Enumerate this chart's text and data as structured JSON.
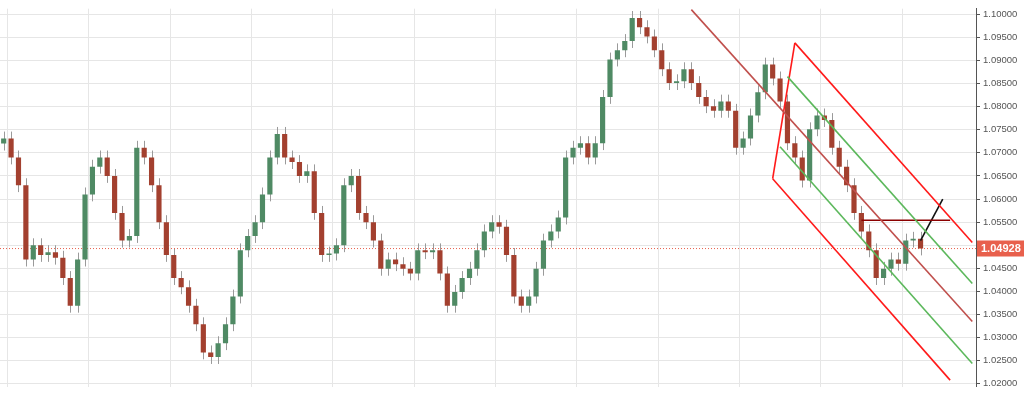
{
  "chart_data": {
    "type": "candlestick",
    "categories": [
      null,
      null,
      null,
      null,
      null,
      null,
      null,
      null,
      null,
      null,
      null,
      null,
      null,
      null,
      null,
      null,
      null,
      null,
      null,
      null,
      null,
      null,
      null,
      null,
      null,
      null,
      null,
      null,
      null,
      null,
      null,
      null,
      null,
      null,
      null,
      null,
      null,
      null,
      null,
      null,
      null,
      null,
      null,
      null,
      null,
      null,
      null,
      null,
      null,
      null,
      null,
      null,
      null,
      null,
      null,
      null,
      null,
      null,
      null,
      null,
      null,
      null,
      null,
      null,
      null,
      null,
      null,
      null,
      null,
      null,
      null,
      null,
      null,
      null,
      null,
      null,
      null,
      null,
      null,
      null,
      null,
      null,
      null,
      null,
      null,
      null,
      null,
      null,
      null,
      null,
      null,
      null,
      null,
      null,
      null,
      null,
      null,
      null,
      null,
      null,
      null,
      null,
      null,
      null,
      null,
      null,
      null,
      null,
      null,
      null,
      null,
      null,
      null,
      null,
      null,
      null,
      null,
      null,
      null,
      null,
      null,
      null,
      null,
      null,
      null,
      null,
      null,
      null,
      null,
      null,
      null,
      null
    ],
    "ohlc": [
      [
        1.072,
        1.0746,
        1.0705,
        1.0731
      ],
      [
        1.0731,
        1.0746,
        1.0675,
        1.069
      ],
      [
        1.069,
        1.0705,
        1.0615,
        1.063
      ],
      [
        1.063,
        1.0645,
        1.0454,
        1.0469
      ],
      [
        1.0469,
        1.0515,
        1.0454,
        1.05
      ],
      [
        1.05,
        1.0515,
        1.0464,
        1.0479
      ],
      [
        1.0479,
        1.05,
        1.0464,
        1.0485
      ],
      [
        1.0485,
        1.05,
        1.0458,
        1.0473
      ],
      [
        1.0473,
        1.0488,
        1.0414,
        1.0429
      ],
      [
        1.0429,
        1.0444,
        1.0354,
        1.0369
      ],
      [
        1.0369,
        1.0484,
        1.0354,
        1.0469
      ],
      [
        1.0469,
        1.0625,
        1.0454,
        1.061
      ],
      [
        1.061,
        1.0685,
        1.0595,
        1.067
      ],
      [
        1.067,
        1.0705,
        1.0655,
        1.069
      ],
      [
        1.069,
        1.0705,
        1.0635,
        1.065
      ],
      [
        1.065,
        1.0665,
        1.0555,
        1.057
      ],
      [
        1.057,
        1.0585,
        1.0495,
        1.051
      ],
      [
        1.051,
        1.0535,
        1.0495,
        1.052
      ],
      [
        1.052,
        1.0726,
        1.0505,
        1.0711
      ],
      [
        1.0711,
        1.0726,
        1.0675,
        1.069
      ],
      [
        1.069,
        1.0705,
        1.0615,
        1.063
      ],
      [
        1.063,
        1.0645,
        1.0535,
        1.055
      ],
      [
        1.055,
        1.0565,
        1.0464,
        1.0479
      ],
      [
        1.0479,
        1.0494,
        1.0414,
        1.0429
      ],
      [
        1.0429,
        1.0444,
        1.0394,
        1.0409
      ],
      [
        1.0409,
        1.0424,
        1.0354,
        1.0369
      ],
      [
        1.0369,
        1.0384,
        1.0314,
        1.0329
      ],
      [
        1.0329,
        1.0344,
        1.0253,
        1.0268
      ],
      [
        1.0268,
        1.0283,
        1.0243,
        1.0258
      ],
      [
        1.0258,
        1.0303,
        1.0243,
        1.0288
      ],
      [
        1.0288,
        1.0344,
        1.0273,
        1.0329
      ],
      [
        1.0329,
        1.0404,
        1.0314,
        1.0389
      ],
      [
        1.0389,
        1.0504,
        1.0374,
        1.0489
      ],
      [
        1.0489,
        1.0535,
        1.0474,
        1.052
      ],
      [
        1.052,
        1.0565,
        1.0505,
        1.055
      ],
      [
        1.055,
        1.0625,
        1.0535,
        1.061
      ],
      [
        1.061,
        1.0705,
        1.0595,
        1.069
      ],
      [
        1.069,
        1.0756,
        1.0675,
        1.0741
      ],
      [
        1.0741,
        1.0756,
        1.0675,
        1.069
      ],
      [
        1.069,
        1.0705,
        1.0665,
        1.068
      ],
      [
        1.068,
        1.0695,
        1.0635,
        1.065
      ],
      [
        1.065,
        1.0675,
        1.0635,
        1.066
      ],
      [
        1.066,
        1.0675,
        1.0555,
        1.057
      ],
      [
        1.057,
        1.0585,
        1.0464,
        1.0479
      ],
      [
        1.0479,
        1.0497,
        1.0464,
        1.0482
      ],
      [
        1.0482,
        1.0515,
        1.0467,
        1.05
      ],
      [
        1.05,
        1.0645,
        1.0485,
        1.063
      ],
      [
        1.063,
        1.0665,
        1.0615,
        1.065
      ],
      [
        1.065,
        1.0665,
        1.0555,
        1.057
      ],
      [
        1.057,
        1.0585,
        1.0535,
        1.055
      ],
      [
        1.055,
        1.0565,
        1.0495,
        1.051
      ],
      [
        1.051,
        1.0525,
        1.0434,
        1.0449
      ],
      [
        1.0449,
        1.0484,
        1.0434,
        1.0469
      ],
      [
        1.0469,
        1.0484,
        1.0444,
        1.0459
      ],
      [
        1.0459,
        1.0474,
        1.0434,
        1.0449
      ],
      [
        1.0449,
        1.0464,
        1.0424,
        1.0439
      ],
      [
        1.0439,
        1.0504,
        1.0424,
        1.0489
      ],
      [
        1.0489,
        1.0504,
        1.047,
        1.0485
      ],
      [
        1.0485,
        1.0504,
        1.047,
        1.0489
      ],
      [
        1.0489,
        1.0504,
        1.0424,
        1.0439
      ],
      [
        1.0439,
        1.0454,
        1.0354,
        1.0369
      ],
      [
        1.0369,
        1.0414,
        1.0354,
        1.0399
      ],
      [
        1.0399,
        1.0444,
        1.0384,
        1.0429
      ],
      [
        1.0429,
        1.0464,
        1.0414,
        1.0449
      ],
      [
        1.0449,
        1.0504,
        1.0434,
        1.0489
      ],
      [
        1.0489,
        1.0545,
        1.0474,
        1.053
      ],
      [
        1.053,
        1.0565,
        1.0515,
        1.055
      ],
      [
        1.055,
        1.0565,
        1.0525,
        1.054
      ],
      [
        1.054,
        1.0555,
        1.0464,
        1.0479
      ],
      [
        1.0479,
        1.0494,
        1.0374,
        1.0389
      ],
      [
        1.0389,
        1.0404,
        1.0354,
        1.0369
      ],
      [
        1.0369,
        1.0404,
        1.0354,
        1.0389
      ],
      [
        1.0389,
        1.0464,
        1.0374,
        1.0449
      ],
      [
        1.0449,
        1.0525,
        1.0434,
        1.051
      ],
      [
        1.051,
        1.0545,
        1.0495,
        1.053
      ],
      [
        1.053,
        1.0575,
        1.0515,
        1.056
      ],
      [
        1.056,
        1.0705,
        1.0545,
        1.069
      ],
      [
        1.069,
        1.0726,
        1.0675,
        1.0711
      ],
      [
        1.0711,
        1.0736,
        1.0696,
        1.0721
      ],
      [
        1.0721,
        1.0736,
        1.0675,
        1.069
      ],
      [
        1.069,
        1.0736,
        1.0675,
        1.0721
      ],
      [
        1.0721,
        1.0836,
        1.0706,
        1.0821
      ],
      [
        1.0821,
        1.0917,
        1.0806,
        1.0902
      ],
      [
        1.0902,
        1.0937,
        1.0887,
        1.0922
      ],
      [
        1.0922,
        1.0957,
        1.0907,
        1.0942
      ],
      [
        1.0942,
        1.1007,
        1.0927,
        1.0992
      ],
      [
        1.0992,
        1.1007,
        1.0957,
        1.0972
      ],
      [
        1.0972,
        1.0987,
        1.0937,
        1.0952
      ],
      [
        1.0952,
        1.0967,
        1.0907,
        1.0922
      ],
      [
        1.0922,
        1.0937,
        1.0866,
        1.0881
      ],
      [
        1.0881,
        1.0896,
        1.0836,
        1.0851
      ],
      [
        1.0851,
        1.087,
        1.0836,
        1.0855
      ],
      [
        1.0855,
        1.0896,
        1.084,
        1.0881
      ],
      [
        1.0881,
        1.0896,
        1.0836,
        1.0851
      ],
      [
        1.0851,
        1.0866,
        1.0806,
        1.0821
      ],
      [
        1.0821,
        1.0836,
        1.0786,
        1.0801
      ],
      [
        1.0801,
        1.0816,
        1.0776,
        1.0791
      ],
      [
        1.0791,
        1.0826,
        1.0776,
        1.0811
      ],
      [
        1.0811,
        1.0826,
        1.0776,
        1.0791
      ],
      [
        1.0791,
        1.0806,
        1.0696,
        1.0711
      ],
      [
        1.0711,
        1.0746,
        1.0696,
        1.0731
      ],
      [
        1.0731,
        1.0796,
        1.0716,
        1.0781
      ],
      [
        1.0781,
        1.0846,
        1.0766,
        1.0831
      ],
      [
        1.0831,
        1.0906,
        1.0816,
        1.0891
      ],
      [
        1.0891,
        1.0906,
        1.0846,
        1.0861
      ],
      [
        1.0861,
        1.0876,
        1.0796,
        1.0811
      ],
      [
        1.0811,
        1.0826,
        1.0706,
        1.0721
      ],
      [
        1.0721,
        1.0736,
        1.0675,
        1.069
      ],
      [
        1.069,
        1.0705,
        1.0625,
        1.064
      ],
      [
        1.064,
        1.0766,
        1.0625,
        1.0751
      ],
      [
        1.0751,
        1.0796,
        1.0736,
        1.0781
      ],
      [
        1.0781,
        1.0796,
        1.0756,
        1.0771
      ],
      [
        1.0771,
        1.0786,
        1.0696,
        1.0711
      ],
      [
        1.0711,
        1.0726,
        1.0655,
        1.067
      ],
      [
        1.067,
        1.0685,
        1.0615,
        1.063
      ],
      [
        1.063,
        1.0645,
        1.0555,
        1.057
      ],
      [
        1.057,
        1.0585,
        1.0515,
        1.053
      ],
      [
        1.053,
        1.0545,
        1.0474,
        1.0489
      ],
      [
        1.0489,
        1.0504,
        1.0414,
        1.0429
      ],
      [
        1.0429,
        1.0464,
        1.0414,
        1.0449
      ],
      [
        1.0449,
        1.0484,
        1.0434,
        1.0469
      ],
      [
        1.0469,
        1.0484,
        1.0445,
        1.046
      ],
      [
        1.046,
        1.0525,
        1.0445,
        1.051
      ],
      [
        1.051,
        1.0529,
        1.0495,
        1.0514
      ],
      [
        1.0514,
        1.0529,
        1.0478,
        1.0493
      ],
      null,
      null,
      null,
      null,
      null,
      null,
      null
    ],
    "series": [
      {
        "type": "line",
        "color": "#ff1a1a",
        "values": [
          null,
          null,
          null,
          null,
          null,
          null,
          null,
          null,
          null,
          null,
          null,
          null,
          null,
          null,
          null,
          null,
          null,
          null,
          null,
          null,
          null,
          null,
          null,
          null,
          null,
          null,
          null,
          null,
          null,
          null,
          null,
          null,
          null,
          null,
          null,
          null,
          null,
          null,
          null,
          null,
          null,
          null,
          null,
          null,
          null,
          null,
          null,
          null,
          null,
          null,
          null,
          null,
          null,
          null,
          null,
          null,
          null,
          null,
          null,
          null,
          null,
          null,
          null,
          null,
          null,
          null,
          null,
          null,
          null,
          null,
          null,
          null,
          null,
          null,
          null,
          null,
          null,
          null,
          null,
          null,
          null,
          null,
          null,
          null,
          null,
          null,
          null,
          null,
          null,
          null,
          null,
          null,
          null,
          null,
          null,
          null,
          null,
          null,
          null,
          null,
          null,
          null,
          null,
          null,
          null,
          null,
          null,
          1.0938,
          null,
          null,
          null,
          null,
          null,
          null,
          null,
          null,
          null,
          null,
          null,
          null,
          null,
          null,
          null,
          null,
          null,
          null,
          null,
          null,
          null,
          null,
          null,
          1.0506
        ]
      },
      {
        "type": "line",
        "color": "#c0504d",
        "values": [
          null,
          null,
          null,
          null,
          null,
          null,
          null,
          null,
          null,
          null,
          null,
          null,
          null,
          null,
          null,
          null,
          null,
          null,
          null,
          null,
          null,
          null,
          null,
          null,
          null,
          null,
          null,
          null,
          null,
          null,
          null,
          null,
          null,
          null,
          null,
          null,
          null,
          null,
          null,
          null,
          null,
          null,
          null,
          null,
          null,
          null,
          null,
          null,
          null,
          null,
          null,
          null,
          null,
          null,
          null,
          null,
          null,
          null,
          null,
          null,
          null,
          null,
          null,
          null,
          null,
          null,
          null,
          null,
          null,
          null,
          null,
          null,
          null,
          null,
          null,
          null,
          null,
          null,
          null,
          null,
          null,
          null,
          null,
          null,
          null,
          null,
          null,
          null,
          null,
          null,
          null,
          null,
          null,
          1.101,
          null,
          null,
          null,
          null,
          null,
          null,
          null,
          null,
          null,
          null,
          null,
          null,
          null,
          null,
          null,
          null,
          null,
          null,
          null,
          null,
          null,
          null,
          null,
          null,
          null,
          null,
          null,
          null,
          null,
          null,
          null,
          null,
          null,
          null,
          null,
          null,
          null,
          1.0335
        ]
      },
      {
        "type": "line",
        "color": "#5cb85c",
        "values": [
          null,
          null,
          null,
          null,
          null,
          null,
          null,
          null,
          null,
          null,
          null,
          null,
          null,
          null,
          null,
          null,
          null,
          null,
          null,
          null,
          null,
          null,
          null,
          null,
          null,
          null,
          null,
          null,
          null,
          null,
          null,
          null,
          null,
          null,
          null,
          null,
          null,
          null,
          null,
          null,
          null,
          null,
          null,
          null,
          null,
          null,
          null,
          null,
          null,
          null,
          null,
          null,
          null,
          null,
          null,
          null,
          null,
          null,
          null,
          null,
          null,
          null,
          null,
          null,
          null,
          null,
          null,
          null,
          null,
          null,
          null,
          null,
          null,
          null,
          null,
          null,
          null,
          null,
          null,
          null,
          null,
          null,
          null,
          null,
          null,
          null,
          null,
          null,
          null,
          null,
          null,
          null,
          null,
          null,
          null,
          null,
          null,
          null,
          null,
          null,
          null,
          null,
          null,
          null,
          null,
          null,
          1.0865,
          null,
          null,
          null,
          null,
          null,
          null,
          null,
          null,
          null,
          null,
          null,
          null,
          null,
          null,
          null,
          null,
          null,
          null,
          null,
          null,
          null,
          null,
          null,
          null,
          1.0417
        ]
      },
      {
        "type": "line",
        "color": "#5cb85c",
        "values": [
          null,
          null,
          null,
          null,
          null,
          null,
          null,
          null,
          null,
          null,
          null,
          null,
          null,
          null,
          null,
          null,
          null,
          null,
          null,
          null,
          null,
          null,
          null,
          null,
          null,
          null,
          null,
          null,
          null,
          null,
          null,
          null,
          null,
          null,
          null,
          null,
          null,
          null,
          null,
          null,
          null,
          null,
          null,
          null,
          null,
          null,
          null,
          null,
          null,
          null,
          null,
          null,
          null,
          null,
          null,
          null,
          null,
          null,
          null,
          null,
          null,
          null,
          null,
          null,
          null,
          null,
          null,
          null,
          null,
          null,
          null,
          null,
          null,
          null,
          null,
          null,
          null,
          null,
          null,
          null,
          null,
          null,
          null,
          null,
          null,
          null,
          null,
          null,
          null,
          null,
          null,
          null,
          null,
          null,
          null,
          null,
          null,
          null,
          null,
          null,
          null,
          null,
          null,
          null,
          null,
          1.0713,
          null,
          null,
          null,
          null,
          null,
          null,
          null,
          null,
          null,
          null,
          null,
          null,
          null,
          null,
          null,
          null,
          null,
          null,
          null,
          null,
          null,
          null,
          null,
          null,
          null,
          1.0244
        ]
      },
      {
        "type": "line",
        "color": "#ff1a1a",
        "values": [
          null,
          null,
          null,
          null,
          null,
          null,
          null,
          null,
          null,
          null,
          null,
          null,
          null,
          null,
          null,
          null,
          null,
          null,
          null,
          null,
          null,
          null,
          null,
          null,
          null,
          null,
          null,
          null,
          null,
          null,
          null,
          null,
          null,
          null,
          null,
          null,
          null,
          null,
          null,
          null,
          null,
          null,
          null,
          null,
          null,
          null,
          null,
          null,
          null,
          null,
          null,
          null,
          null,
          null,
          null,
          null,
          null,
          null,
          null,
          null,
          null,
          null,
          null,
          null,
          null,
          null,
          null,
          null,
          null,
          null,
          null,
          null,
          null,
          null,
          null,
          null,
          null,
          null,
          null,
          null,
          null,
          null,
          null,
          null,
          null,
          null,
          null,
          null,
          null,
          null,
          null,
          null,
          null,
          null,
          null,
          null,
          null,
          null,
          null,
          null,
          null,
          null,
          null,
          null,
          1.0644,
          null,
          null,
          null,
          null,
          null,
          null,
          null,
          null,
          null,
          null,
          null,
          null,
          null,
          null,
          null,
          null,
          null,
          null,
          null,
          null,
          null,
          null,
          null,
          1.0208,
          null,
          null,
          null
        ]
      },
      {
        "type": "line",
        "color": "#ff1a1a",
        "values": [
          null,
          null,
          null,
          null,
          null,
          null,
          null,
          null,
          null,
          null,
          null,
          null,
          null,
          null,
          null,
          null,
          null,
          null,
          null,
          null,
          null,
          null,
          null,
          null,
          null,
          null,
          null,
          null,
          null,
          null,
          null,
          null,
          null,
          null,
          null,
          null,
          null,
          null,
          null,
          null,
          null,
          null,
          null,
          null,
          null,
          null,
          null,
          null,
          null,
          null,
          null,
          null,
          null,
          null,
          null,
          null,
          null,
          null,
          null,
          null,
          null,
          null,
          null,
          null,
          null,
          null,
          null,
          null,
          null,
          null,
          null,
          null,
          null,
          null,
          null,
          null,
          null,
          null,
          null,
          null,
          null,
          null,
          null,
          null,
          null,
          null,
          null,
          null,
          null,
          null,
          null,
          null,
          null,
          null,
          null,
          null,
          null,
          null,
          null,
          null,
          null,
          null,
          null,
          null,
          1.0644,
          null,
          null,
          1.0938,
          null,
          null,
          null,
          null,
          null,
          null,
          null,
          null,
          null,
          null,
          null,
          null,
          null,
          null,
          null,
          null,
          null,
          null,
          null,
          null,
          null,
          null,
          null,
          null
        ]
      },
      {
        "type": "line",
        "color": "#8b0000",
        "values": [
          null,
          null,
          null,
          null,
          null,
          null,
          null,
          null,
          null,
          null,
          null,
          null,
          null,
          null,
          null,
          null,
          null,
          null,
          null,
          null,
          null,
          null,
          null,
          null,
          null,
          null,
          null,
          null,
          null,
          null,
          null,
          null,
          null,
          null,
          null,
          null,
          null,
          null,
          null,
          null,
          null,
          null,
          null,
          null,
          null,
          null,
          null,
          null,
          null,
          null,
          null,
          null,
          null,
          null,
          null,
          null,
          null,
          null,
          null,
          null,
          null,
          null,
          null,
          null,
          null,
          null,
          null,
          null,
          null,
          null,
          null,
          null,
          null,
          null,
          null,
          null,
          null,
          null,
          null,
          null,
          null,
          null,
          null,
          null,
          null,
          null,
          null,
          null,
          null,
          null,
          null,
          null,
          null,
          null,
          null,
          null,
          null,
          null,
          null,
          null,
          null,
          null,
          null,
          null,
          null,
          null,
          null,
          null,
          null,
          null,
          null,
          null,
          null,
          null,
          null,
          null,
          1.0554,
          null,
          null,
          null,
          null,
          null,
          null,
          null,
          null,
          null,
          null,
          null,
          1.0554,
          null,
          null,
          null
        ]
      },
      {
        "type": "line",
        "color": "#111111",
        "values": [
          null,
          null,
          null,
          null,
          null,
          null,
          null,
          null,
          null,
          null,
          null,
          null,
          null,
          null,
          null,
          null,
          null,
          null,
          null,
          null,
          null,
          null,
          null,
          null,
          null,
          null,
          null,
          null,
          null,
          null,
          null,
          null,
          null,
          null,
          null,
          null,
          null,
          null,
          null,
          null,
          null,
          null,
          null,
          null,
          null,
          null,
          null,
          null,
          null,
          null,
          null,
          null,
          null,
          null,
          null,
          null,
          null,
          null,
          null,
          null,
          null,
          null,
          null,
          null,
          null,
          null,
          null,
          null,
          null,
          null,
          null,
          null,
          null,
          null,
          null,
          null,
          null,
          null,
          null,
          null,
          null,
          null,
          null,
          null,
          null,
          null,
          null,
          null,
          null,
          null,
          null,
          null,
          null,
          null,
          null,
          null,
          null,
          null,
          null,
          null,
          null,
          null,
          null,
          null,
          null,
          null,
          null,
          null,
          null,
          null,
          null,
          null,
          null,
          null,
          null,
          null,
          null,
          null,
          null,
          null,
          null,
          null,
          null,
          null,
          1.051,
          null,
          null,
          1.06,
          null,
          null,
          null,
          null
        ]
      }
    ],
    "ylim": [
      1.0194,
      1.1012
    ],
    "yticks": [
      {
        "value": 1.02,
        "label": "1.02000"
      },
      {
        "value": 1.025,
        "label": "1.02500"
      },
      {
        "value": 1.03,
        "label": "1.03000"
      },
      {
        "value": 1.035,
        "label": "1.03500"
      },
      {
        "value": 1.04,
        "label": "1.04000"
      },
      {
        "value": 1.045,
        "label": "1.04500"
      },
      {
        "value": 1.05,
        "label": null
      },
      {
        "value": 1.055,
        "label": "1.05500"
      },
      {
        "value": 1.06,
        "label": "1.06000"
      },
      {
        "value": 1.065,
        "label": "1.06500"
      },
      {
        "value": 1.07,
        "label": "1.07000"
      },
      {
        "value": 1.075,
        "label": "1.07500"
      },
      {
        "value": 1.08,
        "label": "1.08000"
      },
      {
        "value": 1.085,
        "label": "1.08500"
      },
      {
        "value": 1.09,
        "label": "1.09000"
      },
      {
        "value": 1.095,
        "label": "1.09500"
      },
      {
        "value": 1.1,
        "label": "1.10000"
      }
    ],
    "ref_lines": [
      {
        "axis": "y",
        "value": 1.04928,
        "label": "1.04928",
        "color": "#e8604c",
        "line_style": "dotted"
      }
    ],
    "grid": true
  }
}
